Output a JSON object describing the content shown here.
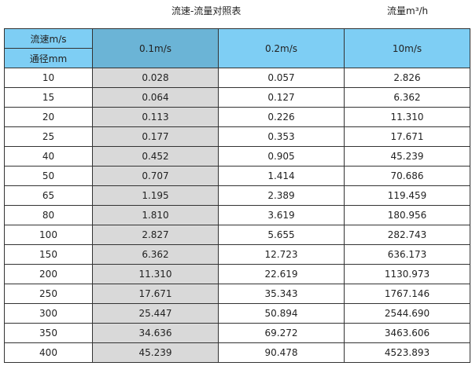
{
  "title": "流速-流量对照表",
  "unit_label": "流量m³/h",
  "header": {
    "velocity_label": "流速m/s",
    "diameter_label": "通径mm",
    "columns": [
      "0.1m/s",
      "0.2m/s",
      "10m/s"
    ]
  },
  "colors": {
    "header": "#7ecef4",
    "header_highlight": "#6bb4d6",
    "highlight_column": "#d9d9d9"
  },
  "rows": [
    [
      "10",
      "0.028",
      "0.057",
      "2.826"
    ],
    [
      "15",
      "0.064",
      "0.127",
      "6.362"
    ],
    [
      "20",
      "0.113",
      "0.226",
      "11.310"
    ],
    [
      "25",
      "0.177",
      "0.353",
      "17.671"
    ],
    [
      "40",
      "0.452",
      "0.905",
      "45.239"
    ],
    [
      "50",
      "0.707",
      "1.414",
      "70.686"
    ],
    [
      "65",
      "1.195",
      "2.389",
      "119.459"
    ],
    [
      "80",
      "1.810",
      "3.619",
      "180.956"
    ],
    [
      "100",
      "2.827",
      "5.655",
      "282.743"
    ],
    [
      "150",
      "6.362",
      "12.723",
      "636.173"
    ],
    [
      "200",
      "11.310",
      "22.619",
      "1130.973"
    ],
    [
      "250",
      "17.671",
      "35.343",
      "1767.146"
    ],
    [
      "300",
      "25.447",
      "50.894",
      "2544.690"
    ],
    [
      "350",
      "34.636",
      "69.272",
      "3463.606"
    ],
    [
      "400",
      "45.239",
      "90.478",
      "4523.893"
    ]
  ]
}
